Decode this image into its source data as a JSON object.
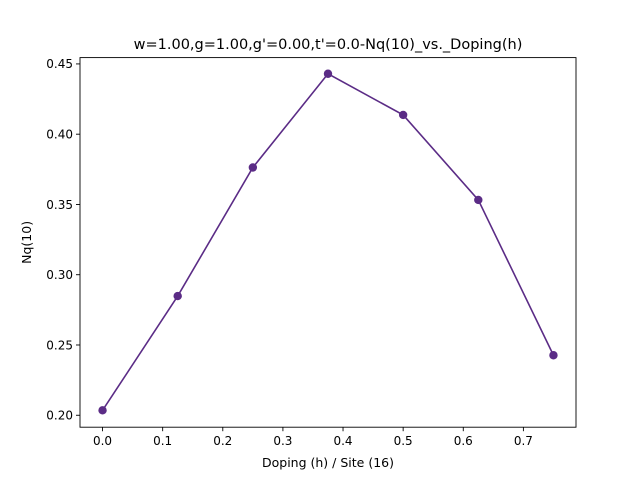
{
  "chart_data": {
    "type": "line",
    "title": "w=1.00,g=1.00,g'=0.00,t'=0.0-Nq(10)_vs._Doping(h)",
    "xlabel": "Doping (h) / Site (16)",
    "ylabel": "Nq(10)",
    "x": [
      0.0,
      0.125,
      0.25,
      0.375,
      0.5,
      0.625,
      0.75
    ],
    "series": [
      {
        "values": [
          0.2035,
          0.2848,
          0.3763,
          0.443,
          0.4137,
          0.3532,
          0.2427
        ]
      }
    ],
    "xlim": [
      -0.0375,
      0.7875
    ],
    "ylim": [
      0.1915,
      0.4545
    ],
    "xticks": [
      0.0,
      0.1,
      0.2,
      0.3,
      0.4,
      0.5,
      0.6,
      0.7
    ],
    "xtick_labels": [
      "0.0",
      "0.1",
      "0.2",
      "0.3",
      "0.4",
      "0.5",
      "0.6",
      "0.7"
    ],
    "yticks": [
      0.2,
      0.25,
      0.3,
      0.35,
      0.4,
      0.45
    ],
    "ytick_labels": [
      "0.20",
      "0.25",
      "0.30",
      "0.35",
      "0.40",
      "0.45"
    ],
    "line_color": "#5b2c86",
    "marker": "circle",
    "grid": false,
    "legend": "none"
  }
}
